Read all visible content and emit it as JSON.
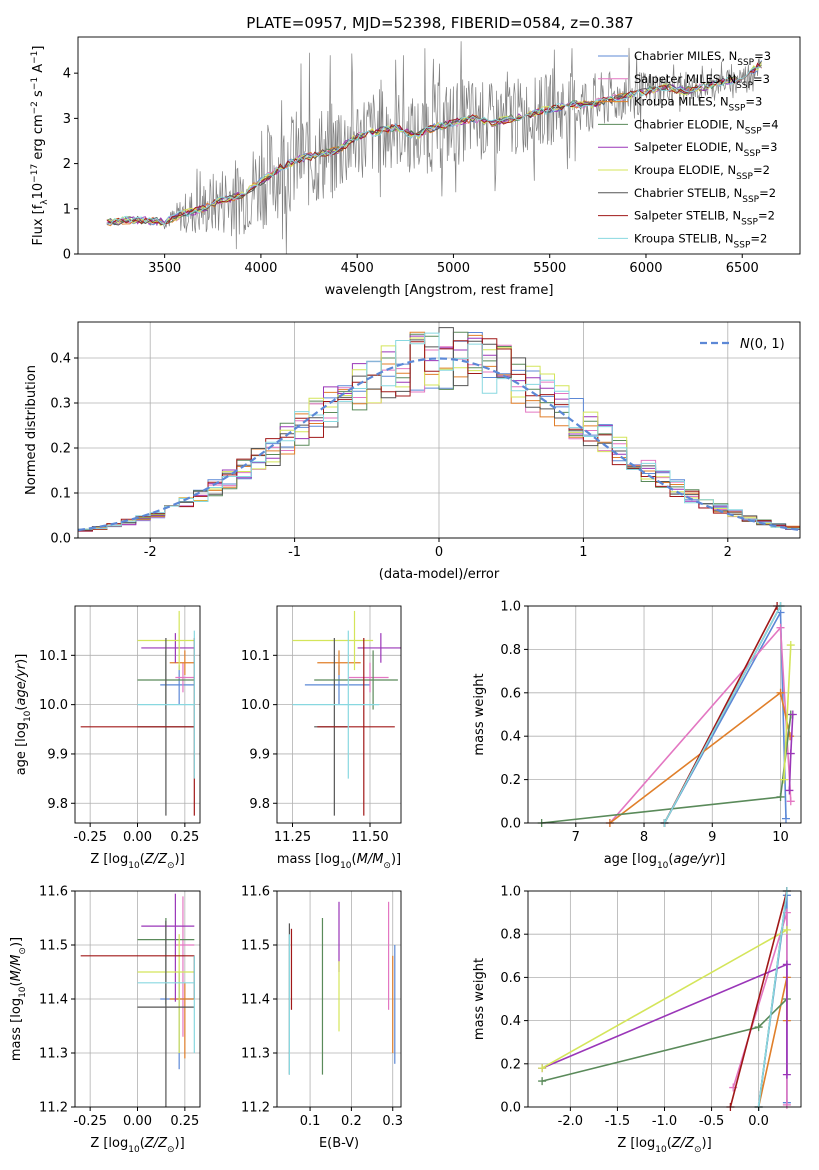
{
  "figure": {
    "title": "PLATE=0957, MJD=52398, FIBERID=0584, z=0.387"
  },
  "colors": {
    "Chabrier MILES": "#5c88d6",
    "Salpeter MILES": "#e377c2",
    "Kroupa MILES": "#e07f2a",
    "Chabrier ELODIE": "#5a8a5a",
    "Salpeter ELODIE": "#9a36b8",
    "Kroupa ELODIE": "#d4e55a",
    "Chabrier STELIB": "#555555",
    "Salpeter STELIB": "#a01818",
    "Kroupa STELIB": "#88d8e0",
    "data": "#808080",
    "normal": "#5c88d6"
  },
  "chart_data": [
    {
      "id": "spectrum",
      "type": "line",
      "title": "PLATE=0957, MJD=52398, FIBERID=0584, z=0.387",
      "xlabel": "wavelength [Angstrom, rest frame]",
      "ylabel": "Flux [f_λ 10^-17 erg cm^-2 s^-1 A^-1]",
      "xlim": [
        3050,
        6800
      ],
      "ylim": [
        0,
        4.8
      ],
      "xticks": [
        3500,
        4000,
        4500,
        5000,
        5500,
        6000,
        6500
      ],
      "yticks": [
        0,
        1,
        2,
        3,
        4
      ],
      "legend_position": "right",
      "data_envelope": {
        "x": [
          3200,
          3300,
          3400,
          3500,
          3600,
          3700,
          3800,
          3900,
          4000,
          4100,
          4200,
          4300,
          4400,
          4500,
          4600,
          4700,
          4800,
          4900,
          5000,
          5100,
          5200,
          5300,
          5400,
          5500,
          5600,
          5700,
          5800,
          5900,
          6000,
          6100,
          6200,
          6300,
          6400,
          6500,
          6600
        ],
        "y": [
          0.7,
          0.75,
          0.75,
          0.7,
          0.9,
          1.0,
          1.2,
          1.3,
          1.6,
          1.9,
          2.1,
          2.2,
          2.3,
          2.6,
          2.7,
          2.8,
          2.6,
          2.8,
          2.9,
          3.0,
          2.9,
          3.0,
          3.1,
          3.2,
          3.3,
          3.3,
          3.4,
          3.5,
          3.6,
          3.7,
          3.6,
          3.7,
          3.8,
          3.9,
          4.2
        ],
        "noise": [
          0.05,
          0.05,
          0.05,
          0.1,
          0.5,
          0.7,
          0.9,
          1.0,
          1.2,
          1.2,
          1.3,
          1.3,
          1.2,
          1.1,
          1.1,
          1.0,
          1.0,
          1.1,
          1.1,
          1.0,
          1.0,
          1.0,
          0.9,
          0.9,
          0.8,
          0.8,
          0.7,
          0.6,
          0.5,
          0.4,
          0.3,
          0.3,
          0.3,
          0.3,
          0.3
        ]
      },
      "series": [
        {
          "name": "Chabrier MILES",
          "nssp": "3"
        },
        {
          "name": "Salpeter MILES",
          "nssp": "3"
        },
        {
          "name": "Kroupa MILES",
          "nssp": "3"
        },
        {
          "name": "Chabrier ELODIE",
          "nssp": "4"
        },
        {
          "name": "Salpeter ELODIE",
          "nssp": "3"
        },
        {
          "name": "Kroupa ELODIE",
          "nssp": "2"
        },
        {
          "name": "Chabrier STELIB",
          "nssp": "2"
        },
        {
          "name": "Salpeter STELIB",
          "nssp": "2"
        },
        {
          "name": "Kroupa STELIB",
          "nssp": "2"
        }
      ]
    },
    {
      "id": "residuals",
      "type": "histogram",
      "xlabel": "(data-model)/error",
      "ylabel": "Normed distribution",
      "xlim": [
        -2.5,
        2.5
      ],
      "ylim": [
        0,
        0.48
      ],
      "xticks": [
        -2,
        -1,
        0,
        1,
        2
      ],
      "yticks": [
        0.0,
        0.1,
        0.2,
        0.3,
        0.4
      ],
      "legend_entry": "N(0,1)",
      "legend_position": "top-right",
      "bin_width": 0.1
    },
    {
      "id": "age-vs-Z",
      "type": "errorbar",
      "xlabel": "Z [log10(Z/Z⊙)]",
      "ylabel": "age  [log10(age/yr)]",
      "xlim": [
        -0.33,
        0.33
      ],
      "ylim": [
        9.76,
        10.2
      ],
      "xticks": [
        -0.25,
        0.0,
        0.25
      ],
      "yticks": [
        9.8,
        9.9,
        10.0,
        10.1
      ]
    },
    {
      "id": "age-vs-mass",
      "type": "errorbar",
      "xlabel": "mass [log10(M/M⊙)]",
      "ylabel": "",
      "xlim": [
        11.2,
        11.6
      ],
      "ylim": [
        9.76,
        10.2
      ],
      "xticks": [
        11.25,
        11.5
      ],
      "yticks": [
        9.8,
        9.9,
        10.0,
        10.1
      ]
    },
    {
      "id": "weight-vs-age",
      "type": "line",
      "xlabel": "age  [log10(age/yr)]",
      "ylabel": "mass weight",
      "xlim": [
        6.3,
        10.3
      ],
      "ylim": [
        0,
        1.0
      ],
      "xticks": [
        7,
        8,
        9,
        10
      ],
      "yticks": [
        0.0,
        0.2,
        0.4,
        0.6,
        0.8,
        1.0
      ]
    },
    {
      "id": "mass-vs-Z",
      "type": "errorbar",
      "xlabel": "Z [log10(Z/Z⊙)]",
      "ylabel": "mass [log10(M/M⊙)]",
      "xlim": [
        -0.33,
        0.33
      ],
      "ylim": [
        11.2,
        11.6
      ],
      "xticks": [
        -0.25,
        0.0,
        0.25
      ],
      "yticks": [
        11.2,
        11.3,
        11.4,
        11.5,
        11.6
      ]
    },
    {
      "id": "mass-vs-ebv",
      "type": "errorbar",
      "xlabel": "E(B-V)",
      "ylabel": "",
      "xlim": [
        0.02,
        0.32
      ],
      "ylim": [
        11.2,
        11.6
      ],
      "xticks": [
        0.1,
        0.2,
        0.3
      ],
      "yticks": [
        11.2,
        11.3,
        11.4,
        11.5,
        11.6
      ]
    },
    {
      "id": "weight-vs-Z",
      "type": "line",
      "xlabel": "Z [log10(Z/Z⊙)]",
      "ylabel": "mass weight",
      "xlim": [
        -2.45,
        0.45
      ],
      "ylim": [
        0,
        1.0
      ],
      "xticks": [
        -2.0,
        -1.5,
        -1.0,
        -0.5,
        0.0
      ],
      "yticks": [
        0.0,
        0.2,
        0.4,
        0.6,
        0.8,
        1.0
      ]
    }
  ],
  "ssp_fits": [
    {
      "name": "Chabrier MILES",
      "Z": 0.22,
      "Z_lo": 0.12,
      "Z_hi": 0.3,
      "age": 10.04,
      "age_err": 0.04,
      "mass": 11.4,
      "mass_lo": 11.32,
      "mass_hi": 11.47,
      "mass_err": 0.05,
      "ebv": 0.305,
      "ebv_mass_lo": 11.28,
      "ebv_mass_hi": 11.5,
      "ages": [
        10.0,
        10.08,
        8.3
      ],
      "age_weights": [
        0.97,
        0.02,
        0.0
      ],
      "Zs": [
        0.3,
        0.3,
        0.0
      ],
      "Z_weights": [
        0.98,
        0.02,
        0.0
      ]
    },
    {
      "name": "Salpeter MILES",
      "Z": 0.24,
      "Z_lo": 0.2,
      "Z_hi": 0.3,
      "age": 10.055,
      "age_err": 0.03,
      "mass": 11.5,
      "mass_lo": 11.46,
      "mass_hi": 11.53,
      "mass_err": 0.09,
      "ebv": 0.29,
      "ebv_mass_lo": 11.38,
      "ebv_mass_hi": 11.58,
      "ages": [
        10.0,
        10.15,
        7.5
      ],
      "age_weights": [
        0.9,
        0.1,
        0.0
      ],
      "Zs": [
        0.3,
        0.3,
        -0.27
      ],
      "Z_weights": [
        0.9,
        0.01,
        0.09
      ]
    },
    {
      "name": "Kroupa MILES",
      "Z": 0.25,
      "Z_lo": 0.17,
      "Z_hi": 0.3,
      "age": 10.085,
      "age_err": 0.025,
      "mass": 11.4,
      "mass_lo": 11.36,
      "mass_hi": 11.44,
      "mass_err": 0.03,
      "ebv": 0.3,
      "ebv_mass_lo": 11.3,
      "ebv_mass_hi": 11.48,
      "ages": [
        10.0,
        10.14,
        7.5
      ],
      "age_weights": [
        0.6,
        0.4,
        0.0
      ],
      "Zs": [
        0.3,
        0.3,
        0.0
      ],
      "Z_weights": [
        0.6,
        0.4,
        0.0
      ]
    },
    {
      "name": "Chabrier ELODIE",
      "Z": 0.15,
      "Z_lo": 0.0,
      "Z_hi": 0.3,
      "age": 10.05,
      "age_err": 0.06,
      "mass": 11.51,
      "mass_lo": 11.35,
      "mass_hi": 11.56,
      "mass_err": 0.04,
      "ebv": 0.13,
      "ebv_mass_lo": 11.26,
      "ebv_mass_hi": 11.55,
      "ages": [
        6.5,
        10.0,
        10.15
      ],
      "age_weights": [
        0.0,
        0.12,
        0.5
      ],
      "Zs": [
        -2.3,
        -0.0,
        0.3
      ],
      "Z_weights": [
        0.12,
        0.37,
        0.5
      ]
    },
    {
      "name": "Salpeter ELODIE",
      "Z": 0.2,
      "Z_lo": 0.02,
      "Z_hi": 0.3,
      "age": 10.115,
      "age_err": 0.03,
      "mass": 11.535,
      "mass_lo": 11.49,
      "mass_hi": 11.58,
      "mass_err": 0.06,
      "ebv": 0.17,
      "ebv_mass_lo": 11.45,
      "ebv_mass_hi": 11.58,
      "ages": [
        10.13,
        10.15,
        10.18
      ],
      "age_weights": [
        0.15,
        0.32,
        0.5
      ],
      "Zs": [
        -2.3,
        0.3,
        0.3
      ],
      "Z_weights": [
        0.18,
        0.66,
        0.15
      ]
    },
    {
      "name": "Kroupa ELODIE",
      "Z": 0.22,
      "Z_lo": 0.0,
      "Z_hi": 0.3,
      "age": 10.13,
      "age_err": 0.06,
      "mass": 11.45,
      "mass_lo": 11.28,
      "mass_hi": 11.48,
      "mass_err": 0.07,
      "ebv": 0.17,
      "ebv_mass_lo": 11.34,
      "ebv_mass_hi": 11.47,
      "ages": [
        10.05,
        10.15
      ],
      "age_weights": [
        0.2,
        0.82
      ],
      "Zs": [
        -2.3,
        0.3
      ],
      "Z_weights": [
        0.18,
        0.82
      ]
    },
    {
      "name": "Chabrier STELIB",
      "Z": 0.15,
      "Z_lo": 0.0,
      "Z_hi": 0.3,
      "age": 9.955,
      "age_err": 0.18,
      "mass": 11.385,
      "mass_lo": 11.35,
      "mass_hi": 11.4,
      "mass_err": 0.16,
      "ebv": 0.05,
      "ebv_mass_lo": 11.26,
      "ebv_mass_hi": 11.54,
      "ages": [
        8.3,
        10.0
      ],
      "age_weights": [
        0.0,
        1.0
      ],
      "Zs": [
        0.0,
        0.3
      ],
      "Z_weights": [
        0.0,
        1.0
      ]
    },
    {
      "name": "Salpeter STELIB",
      "Z": 0.3,
      "Z_lo": -0.3,
      "Z_hi": 0.3,
      "age": 9.955,
      "age_err": 0.18,
      "mass": 11.48,
      "mass_lo": 11.36,
      "mass_hi": 11.55,
      "mass_err": 0.0,
      "ebv": 0.055,
      "ebv_mass_lo": 11.38,
      "ebv_mass_hi": 11.53,
      "ages": [
        8.3,
        9.95
      ],
      "age_weights": [
        0.0,
        1.0
      ],
      "Zs": [
        -0.3,
        0.3
      ],
      "Z_weights": [
        0.0,
        1.0
      ]
    },
    {
      "name": "Kroupa STELIB",
      "Z": 0.3,
      "Z_lo": 0.0,
      "Z_hi": 0.3,
      "age": 10.0,
      "age_err": 0.15,
      "mass": 11.43,
      "mass_lo": 11.28,
      "mass_hi": 11.5,
      "mass_err": 0.05,
      "ebv": 0.05,
      "ebv_mass_lo": 11.26,
      "ebv_mass_hi": 11.52,
      "ages": [
        8.3,
        10.0
      ],
      "age_weights": [
        0.0,
        1.0
      ],
      "Zs": [
        0.0,
        0.3
      ],
      "Z_weights": [
        0.0,
        1.0
      ]
    }
  ]
}
